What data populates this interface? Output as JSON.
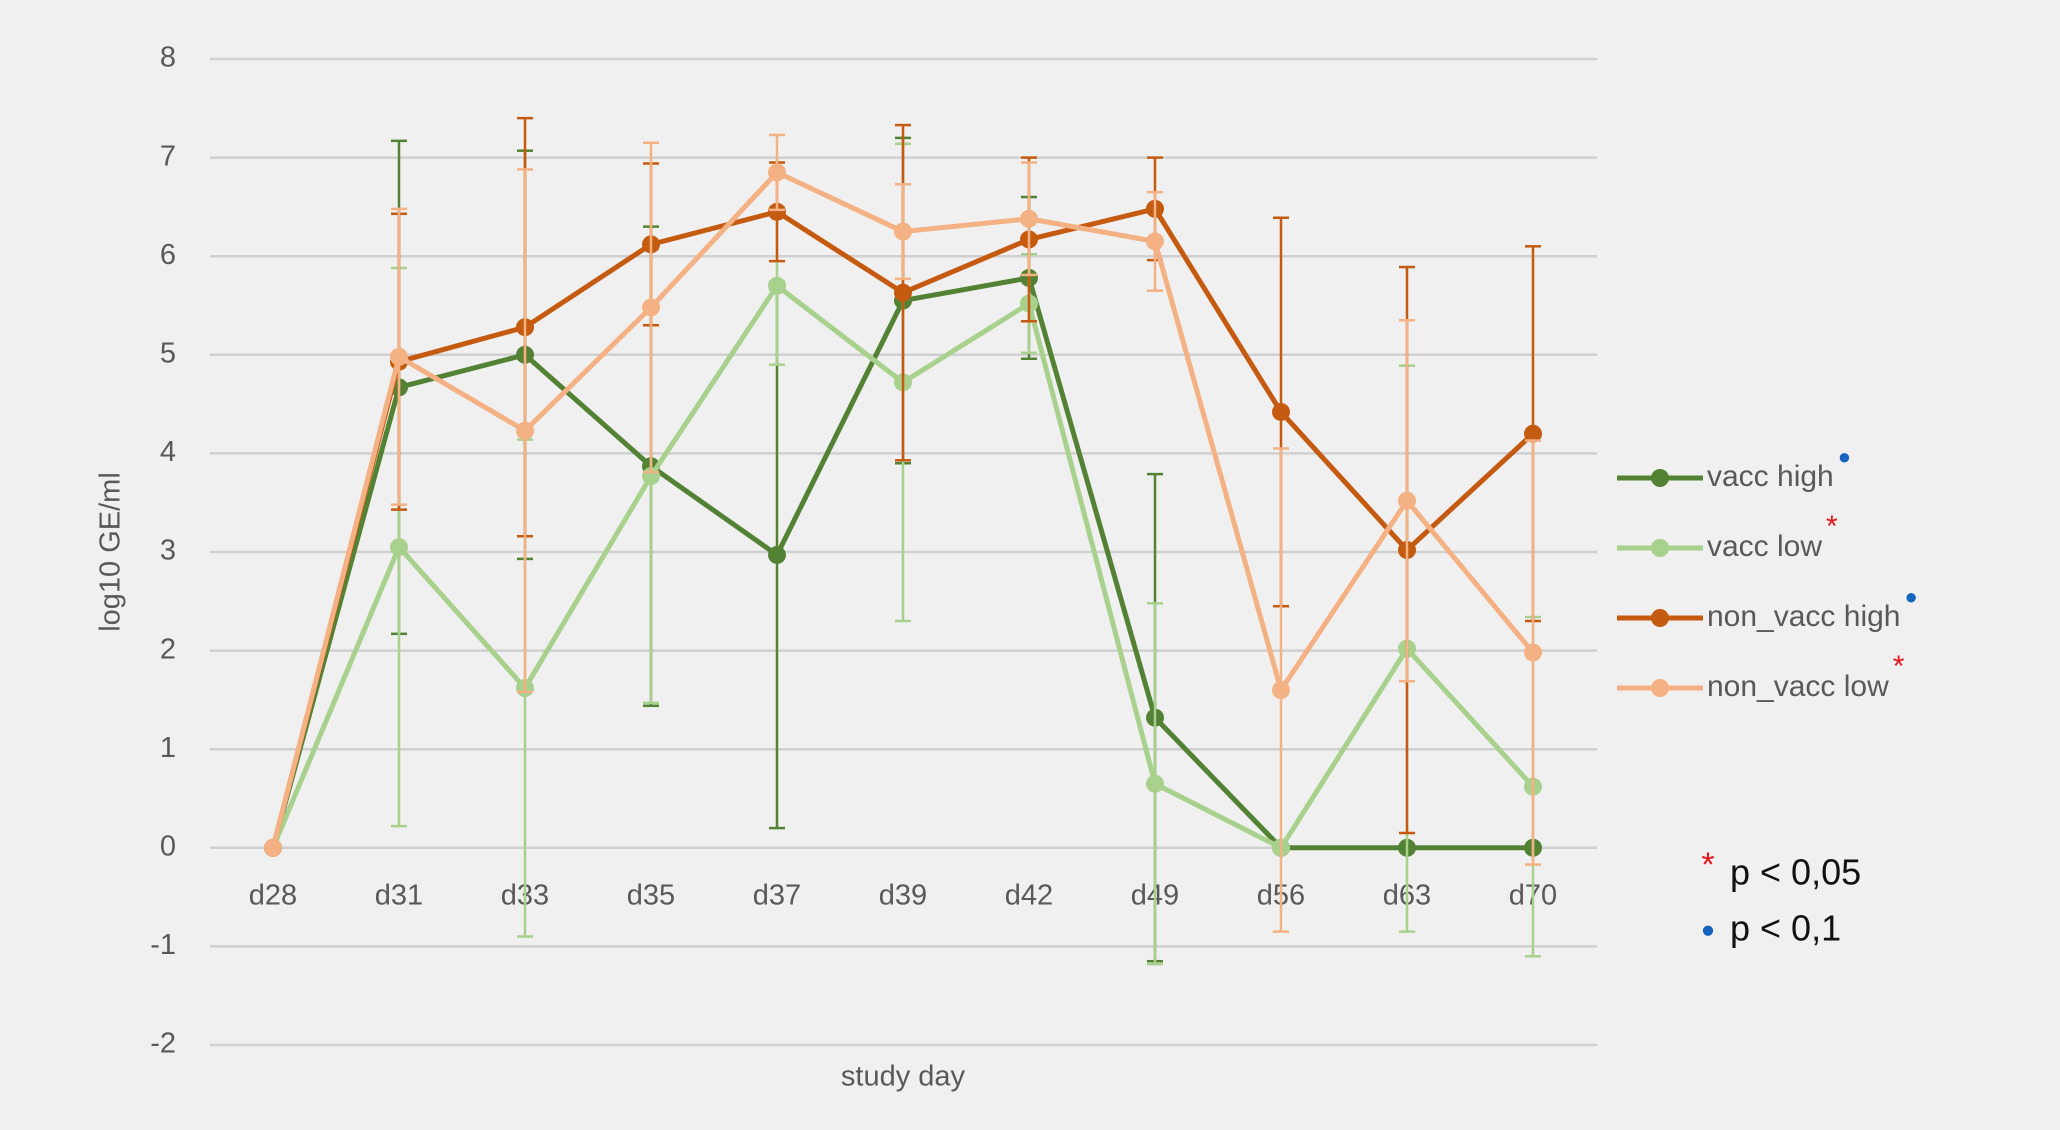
{
  "chart_data": {
    "type": "line",
    "x_label": "study day",
    "y_label": "log10 GE/ml",
    "categories": [
      "d28",
      "d31",
      "d33",
      "d35",
      "d37",
      "d39",
      "d42",
      "d49",
      "d56",
      "d63",
      "d70"
    ],
    "ylim": [
      -2,
      8
    ],
    "yticks": [
      -2,
      -1,
      0,
      1,
      2,
      3,
      4,
      5,
      6,
      7,
      8
    ],
    "grid": true,
    "series": [
      {
        "name": "vacc high",
        "color": "#548235",
        "note": "●",
        "values": [
          0,
          4.67,
          5.0,
          3.87,
          2.97,
          5.55,
          5.78,
          1.32,
          0,
          0,
          0
        ],
        "errors": [
          0,
          2.5,
          2.07,
          2.43,
          2.77,
          1.65,
          0.82,
          2.47,
          0,
          0,
          0
        ]
      },
      {
        "name": "vacc low",
        "color": "#a9d18e",
        "note": "*",
        "values": [
          0,
          3.05,
          1.62,
          3.77,
          5.7,
          4.72,
          5.52,
          0.65,
          0,
          2.02,
          0.62
        ],
        "errors": [
          0,
          2.83,
          2.52,
          2.3,
          0.8,
          2.42,
          0.5,
          1.83,
          0,
          2.87,
          1.72
        ]
      },
      {
        "name": "non_vacc high",
        "color": "#c55a11",
        "note": "●",
        "values": [
          0,
          4.93,
          5.28,
          6.12,
          6.45,
          5.63,
          6.17,
          6.48,
          4.42,
          3.02,
          4.2
        ],
        "errors": [
          0,
          1.5,
          2.12,
          0.82,
          0.5,
          1.7,
          0.83,
          0.52,
          1.97,
          2.87,
          1.9
        ]
      },
      {
        "name": "non_vacc low",
        "color": "#f4b183",
        "note": "*",
        "values": [
          0,
          4.98,
          4.23,
          5.48,
          6.85,
          6.25,
          6.38,
          6.15,
          1.6,
          3.52,
          1.98
        ],
        "errors": [
          0,
          1.5,
          2.65,
          1.67,
          0.38,
          0.48,
          0.57,
          0.5,
          2.45,
          1.83,
          2.15
        ]
      }
    ],
    "annotations": [
      {
        "symbol": "*",
        "color": "#e8141c",
        "text": "p < 0,05"
      },
      {
        "symbol": "●",
        "color": "#1565c0",
        "text": "p < 0,1"
      }
    ]
  }
}
